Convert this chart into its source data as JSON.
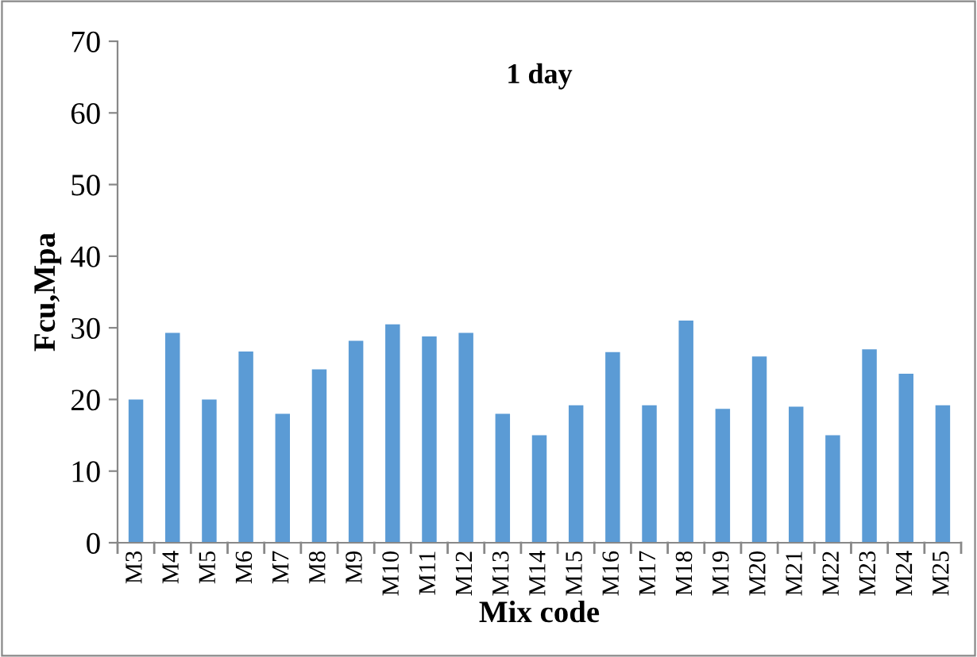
{
  "chart_data": {
    "type": "bar",
    "title": "1 day",
    "xlabel": "Mix code",
    "ylabel": "Fcu,Mpa",
    "categories": [
      "M3",
      "M4",
      "M5",
      "M6",
      "M7",
      "M8",
      "M9",
      "M10",
      "M11",
      "M12",
      "M13",
      "M14",
      "M15",
      "M16",
      "M17",
      "M18",
      "M19",
      "M20",
      "M21",
      "M22",
      "M23",
      "M24",
      "M25"
    ],
    "values": [
      20,
      29.3,
      20,
      26.7,
      18,
      24.2,
      28.2,
      30.5,
      28.8,
      29.3,
      18,
      15,
      19.2,
      26.6,
      19.2,
      31,
      18.7,
      26,
      19,
      15,
      27,
      23.6,
      19.2
    ],
    "color": "#5b9bd5",
    "ylim": [
      0,
      70
    ],
    "yticks": [
      0,
      10,
      20,
      30,
      40,
      50,
      60,
      70
    ],
    "grid": false,
    "legend": false
  }
}
